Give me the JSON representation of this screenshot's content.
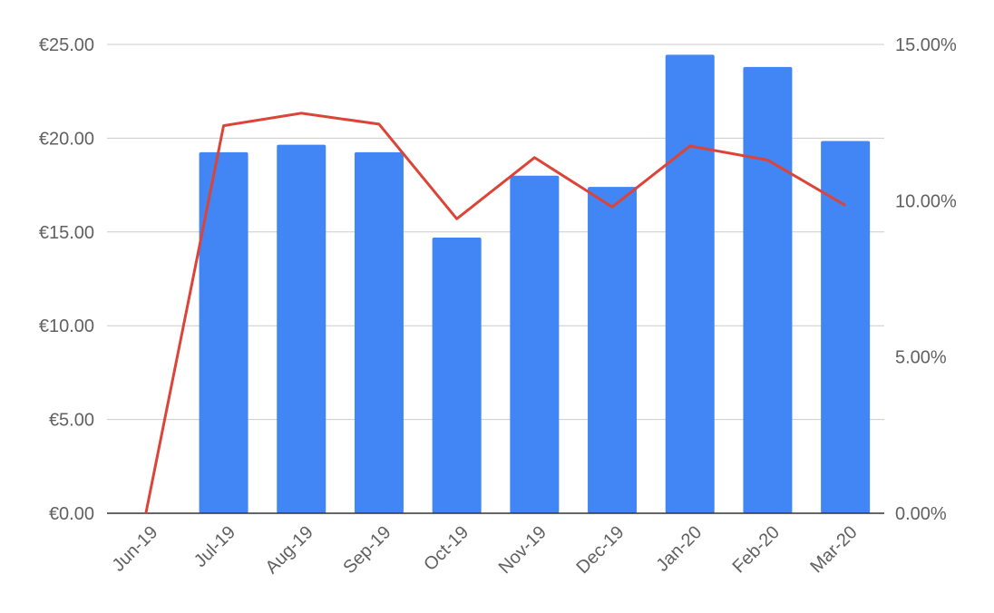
{
  "chart_data": {
    "type": "bar",
    "title": "",
    "xlabel": "",
    "ylabel": "",
    "categories": [
      "Jun-19",
      "Jul-19",
      "Aug-19",
      "Sep-19",
      "Oct-19",
      "Nov-19",
      "Dec-19",
      "Jan-20",
      "Feb-20",
      "Mar-20"
    ],
    "bar_series": {
      "axis": "left",
      "color": "#4285f4",
      "values": [
        0.0,
        19.25,
        19.65,
        19.25,
        14.7,
        18.0,
        17.4,
        24.45,
        23.8,
        19.85
      ]
    },
    "line_series": {
      "axis": "right",
      "color": "#db4437",
      "values": [
        0.0,
        0.124,
        0.128,
        0.1245,
        0.0942,
        0.1138,
        0.098,
        0.1175,
        0.113,
        0.0985
      ]
    },
    "y_left": {
      "min": 0,
      "max": 25,
      "ticks": [
        0,
        5,
        10,
        15,
        20,
        25
      ],
      "tick_labels": [
        "€0.00",
        "€5.00",
        "€10.00",
        "€15.00",
        "€20.00",
        "€25.00"
      ]
    },
    "y_right": {
      "min": 0,
      "max": 0.15,
      "ticks": [
        0,
        0.05,
        0.1,
        0.15
      ],
      "tick_labels": [
        "0.00%",
        "5.00%",
        "10.00%",
        "15.00%"
      ]
    },
    "grid": true,
    "legend": "none"
  }
}
